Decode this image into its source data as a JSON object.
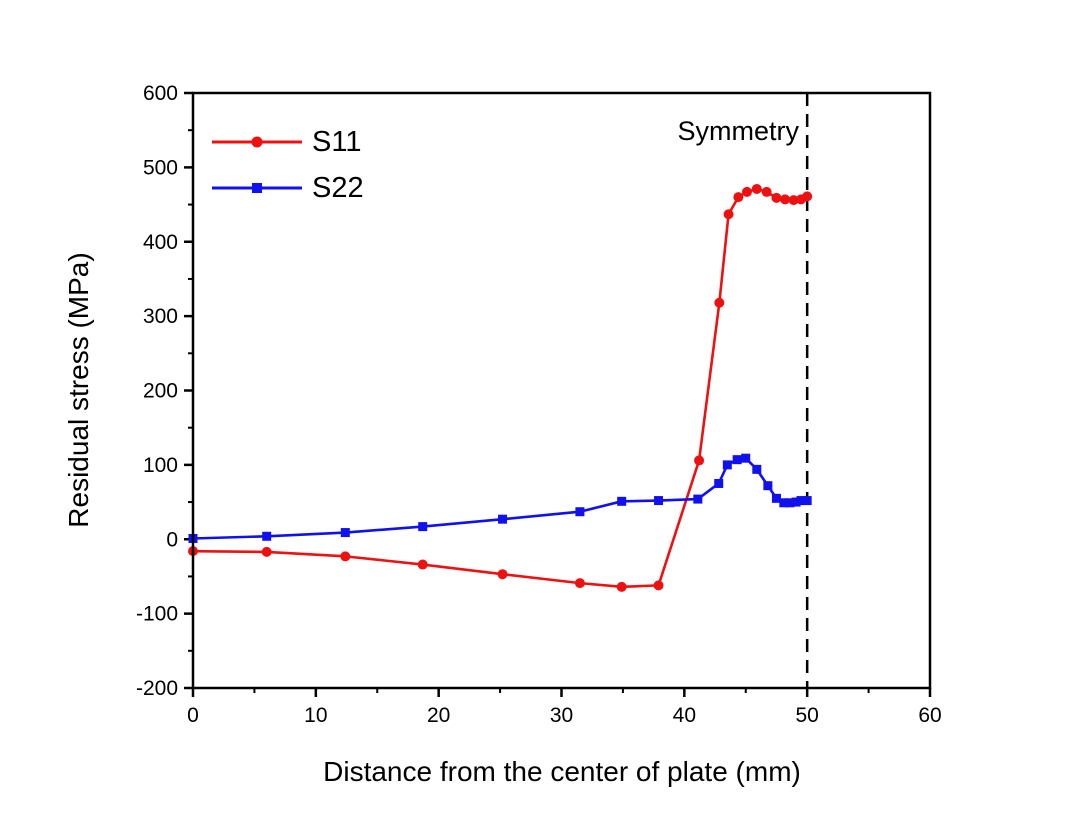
{
  "figure": {
    "background": "#ffffff",
    "frame_color": "#000000"
  },
  "chart_data": {
    "type": "line",
    "title": "",
    "xlabel": "Distance from the center of plate (mm)",
    "ylabel": "Residual stress (MPa)",
    "xlim": [
      0,
      60
    ],
    "ylim": [
      -200,
      600
    ],
    "x_major_ticks": [
      0,
      10,
      20,
      30,
      40,
      50,
      60
    ],
    "x_minor_ticks": [
      5,
      15,
      25,
      35,
      45,
      55
    ],
    "y_major_ticks": [
      -200,
      -100,
      0,
      100,
      200,
      300,
      400,
      500,
      600
    ],
    "y_minor_ticks": [
      -150,
      -50,
      50,
      150,
      250,
      350,
      450,
      550
    ],
    "grid": false,
    "legend_position": "top-left",
    "series": [
      {
        "name": "S11",
        "color": "#ee1111",
        "marker": "circle",
        "x": [
          0,
          6,
          12.4,
          18.7,
          25.2,
          31.5,
          34.9,
          37.9,
          41.2,
          42.85,
          43.6,
          44.4,
          45.1,
          45.9,
          46.7,
          47.5,
          48.2,
          48.9,
          49.5,
          50
        ],
        "y": [
          -16,
          -17,
          -23,
          -34,
          -47,
          -59,
          -64,
          -62,
          106,
          318,
          437,
          460,
          467,
          471,
          467,
          459,
          457,
          456,
          457,
          461
        ]
      },
      {
        "name": "S22",
        "color": "#1111ee",
        "marker": "square",
        "x": [
          0,
          6,
          12.4,
          18.7,
          25.2,
          31.5,
          34.9,
          37.9,
          41.1,
          42.8,
          43.5,
          44.3,
          45.0,
          45.9,
          46.8,
          47.5,
          48.1,
          48.6,
          49.1,
          49.5,
          50
        ],
        "y": [
          1,
          4,
          9,
          17,
          27,
          37,
          51,
          52,
          54,
          75,
          100,
          107,
          109,
          94,
          72,
          55,
          49,
          49,
          50,
          52,
          52
        ]
      }
    ],
    "annotations": [
      {
        "type": "vline",
        "x": 50,
        "style": "dashed",
        "color": "#000000",
        "label": "Symmetry"
      }
    ]
  }
}
